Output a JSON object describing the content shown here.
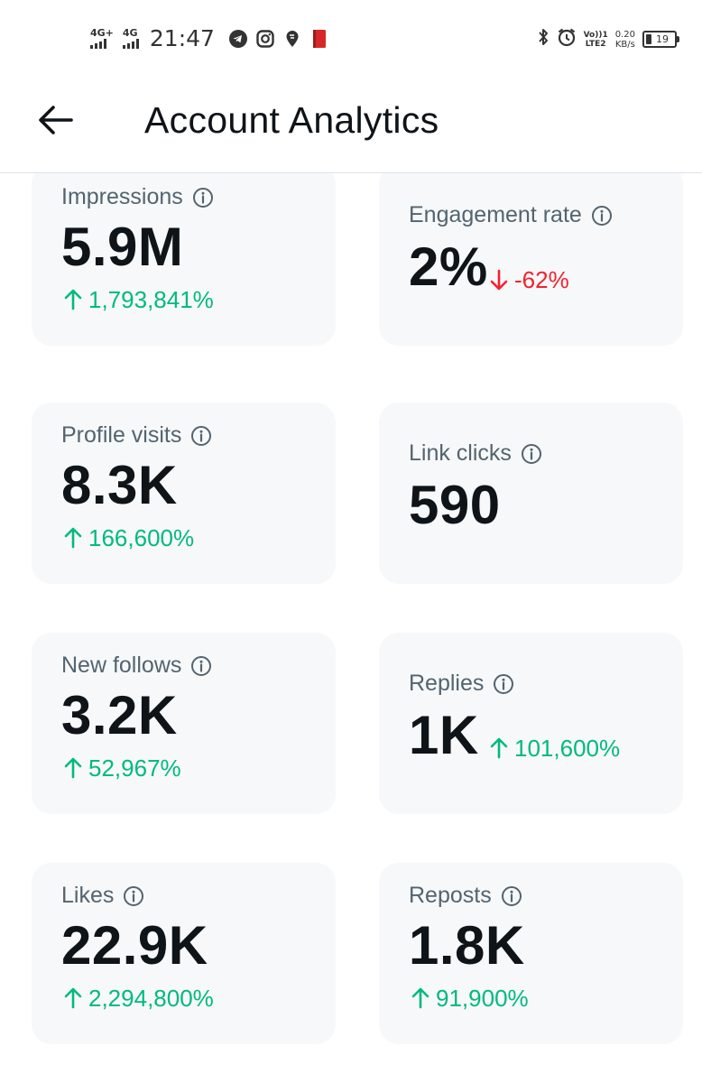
{
  "status_bar": {
    "network_1": "4G+",
    "network_2": "4G",
    "time": "21:47",
    "apps": [
      "telegram-icon",
      "instagram-icon",
      "swiggy-icon",
      "book-icon"
    ],
    "volte": [
      "Vo))",
      "LTE2"
    ],
    "volte_sim": "1",
    "speed_value": "0.20",
    "speed_unit": "KB/s",
    "battery_level": "19"
  },
  "header": {
    "back_icon": "arrow-left-icon",
    "title": "Account Analytics"
  },
  "colors": {
    "positive": "#00ba7c",
    "negative": "#f4212e",
    "card_bg": "#f7f8f9",
    "label": "#536471",
    "value": "#0f1419"
  },
  "metrics": [
    {
      "label": "Impressions",
      "value": "5.9M",
      "change": "1,793,841%",
      "direction": "up",
      "change_position": "below"
    },
    {
      "label": "Engagement rate",
      "value": "2%",
      "change": "-62%",
      "direction": "down",
      "change_position": "inline"
    },
    {
      "label": "Profile visits",
      "value": "8.3K",
      "change": "166,600%",
      "direction": "up",
      "change_position": "below"
    },
    {
      "label": "Link clicks",
      "value": "590",
      "change": "",
      "direction": "none",
      "change_position": "none"
    },
    {
      "label": "New follows",
      "value": "3.2K",
      "change": "52,967%",
      "direction": "up",
      "change_position": "below"
    },
    {
      "label": "Replies",
      "value": "1K",
      "change": "101,600%",
      "direction": "up",
      "change_position": "inline"
    },
    {
      "label": "Likes",
      "value": "22.9K",
      "change": "2,294,800%",
      "direction": "up",
      "change_position": "below"
    },
    {
      "label": "Reposts",
      "value": "1.8K",
      "change": "91,900%",
      "direction": "up",
      "change_position": "below"
    }
  ]
}
